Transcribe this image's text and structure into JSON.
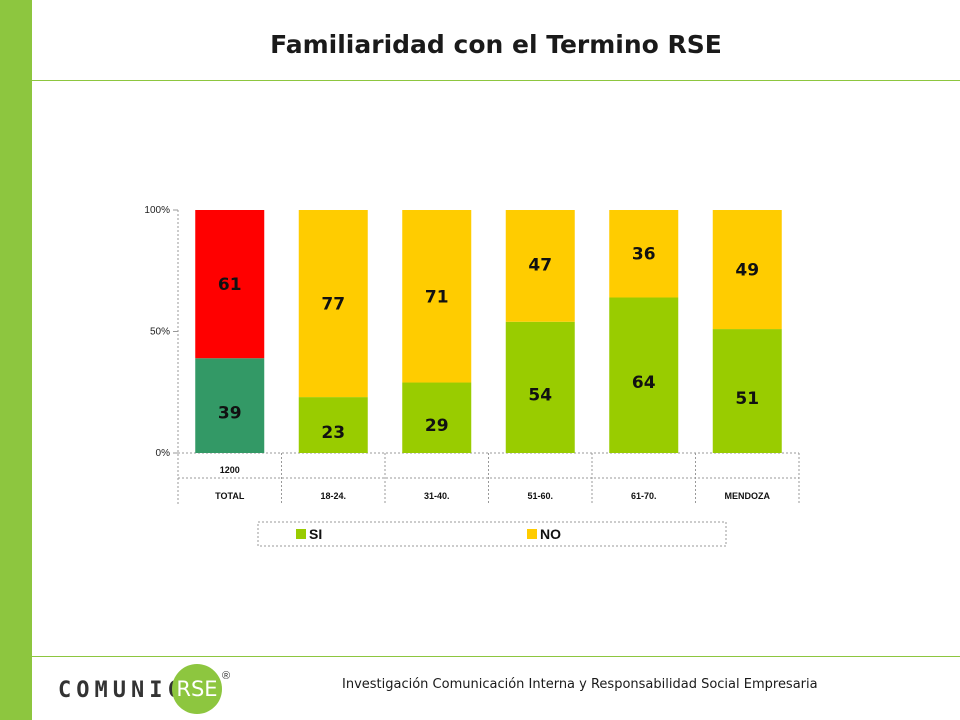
{
  "slide": {
    "title": "Familiaridad con el Termino RSE",
    "footer_text": "Investigación Comunicación Interna y Responsabilidad Social Empresaria"
  },
  "logo": {
    "word": "COMUNICA",
    "badge": "RSE",
    "registered_mark": "®"
  },
  "colors": {
    "accent": "#8dc63f",
    "si": "#99cc00",
    "no": "#ffcc00",
    "total_si": "#339966",
    "total_no": "#ff0000"
  },
  "chart_data": {
    "type": "bar",
    "stacked": true,
    "title": "Familiaridad con el Termino RSE",
    "categories": [
      "TOTAL",
      "18-24.",
      "31-40.",
      "51-60.",
      "61-70.",
      "MENDOZA"
    ],
    "base_row": [
      "1200",
      "",
      "",
      "",
      "",
      ""
    ],
    "series": [
      {
        "name": "SI",
        "values": [
          39,
          23,
          29,
          54,
          64,
          51
        ]
      },
      {
        "name": "NO",
        "values": [
          61,
          77,
          71,
          47,
          36,
          49
        ]
      }
    ],
    "yticks": [
      "0%",
      "50%",
      "100%"
    ],
    "ylim": [
      0,
      100
    ],
    "legend_position": "bottom",
    "grid": false
  }
}
